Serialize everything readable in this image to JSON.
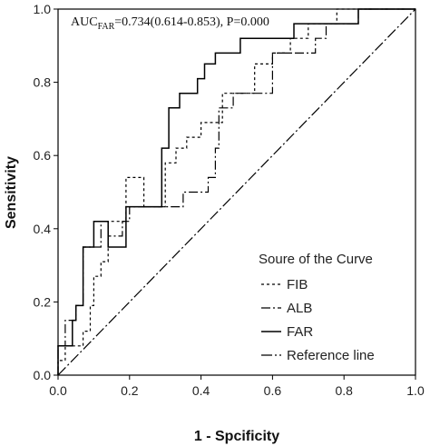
{
  "chart_data": {
    "type": "line",
    "xlabel": "1 - Spcificity",
    "ylabel": "Sensitivity",
    "xlim": [
      0,
      1
    ],
    "ylim": [
      0,
      1
    ],
    "xticks": [
      "0.0",
      "0.2",
      "0.4",
      "0.6",
      "0.8",
      "1.0"
    ],
    "yticks": [
      "0.0",
      "0.2",
      "0.4",
      "0.6",
      "0.8",
      "1.0"
    ],
    "grid": false,
    "legend_position": "bottom-right",
    "legend_title": "Soure of the Curve",
    "annotation": {
      "prefix": "AUC",
      "subscript": "FAR",
      "rest": "=0.734(0.614-0.853), P=0.000"
    },
    "series": [
      {
        "name": "FIB",
        "dash": "3,3",
        "points": [
          [
            0,
            0
          ],
          [
            0,
            0.04
          ],
          [
            0.02,
            0.04
          ],
          [
            0.02,
            0.08
          ],
          [
            0.07,
            0.08
          ],
          [
            0.07,
            0.12
          ],
          [
            0.09,
            0.12
          ],
          [
            0.09,
            0.19
          ],
          [
            0.1,
            0.19
          ],
          [
            0.1,
            0.27
          ],
          [
            0.12,
            0.27
          ],
          [
            0.12,
            0.31
          ],
          [
            0.14,
            0.31
          ],
          [
            0.14,
            0.42
          ],
          [
            0.19,
            0.42
          ],
          [
            0.19,
            0.54
          ],
          [
            0.24,
            0.54
          ],
          [
            0.24,
            0.46
          ],
          [
            0.3,
            0.46
          ],
          [
            0.3,
            0.58
          ],
          [
            0.33,
            0.58
          ],
          [
            0.33,
            0.62
          ],
          [
            0.36,
            0.62
          ],
          [
            0.36,
            0.65
          ],
          [
            0.4,
            0.65
          ],
          [
            0.4,
            0.69
          ],
          [
            0.46,
            0.69
          ],
          [
            0.46,
            0.77
          ],
          [
            0.55,
            0.77
          ],
          [
            0.55,
            0.85
          ],
          [
            0.6,
            0.85
          ],
          [
            0.6,
            0.88
          ],
          [
            0.65,
            0.88
          ],
          [
            0.65,
            0.92
          ],
          [
            0.7,
            0.92
          ],
          [
            0.7,
            0.96
          ],
          [
            0.78,
            0.96
          ],
          [
            0.78,
            1.0
          ],
          [
            1.0,
            1.0
          ]
        ]
      },
      {
        "name": "ALB",
        "dash": "10,3,2,3",
        "points": [
          [
            0,
            0
          ],
          [
            0,
            0.08
          ],
          [
            0.02,
            0.08
          ],
          [
            0.02,
            0.15
          ],
          [
            0.05,
            0.15
          ],
          [
            0.05,
            0.19
          ],
          [
            0.07,
            0.19
          ],
          [
            0.07,
            0.35
          ],
          [
            0.12,
            0.35
          ],
          [
            0.12,
            0.42
          ],
          [
            0.14,
            0.42
          ],
          [
            0.14,
            0.38
          ],
          [
            0.18,
            0.38
          ],
          [
            0.18,
            0.42
          ],
          [
            0.2,
            0.42
          ],
          [
            0.2,
            0.46
          ],
          [
            0.35,
            0.46
          ],
          [
            0.35,
            0.5
          ],
          [
            0.42,
            0.5
          ],
          [
            0.42,
            0.54
          ],
          [
            0.44,
            0.54
          ],
          [
            0.44,
            0.62
          ],
          [
            0.45,
            0.62
          ],
          [
            0.45,
            0.73
          ],
          [
            0.49,
            0.73
          ],
          [
            0.49,
            0.77
          ],
          [
            0.6,
            0.77
          ],
          [
            0.6,
            0.88
          ],
          [
            0.72,
            0.88
          ],
          [
            0.72,
            0.92
          ],
          [
            0.75,
            0.92
          ],
          [
            0.75,
            0.96
          ],
          [
            0.84,
            0.96
          ],
          [
            0.84,
            1.0
          ],
          [
            1.0,
            1.0
          ]
        ]
      },
      {
        "name": "FAR",
        "dash": "",
        "points": [
          [
            0,
            0
          ],
          [
            0,
            0.08
          ],
          [
            0.04,
            0.08
          ],
          [
            0.04,
            0.15
          ],
          [
            0.05,
            0.15
          ],
          [
            0.05,
            0.19
          ],
          [
            0.07,
            0.19
          ],
          [
            0.07,
            0.35
          ],
          [
            0.1,
            0.35
          ],
          [
            0.1,
            0.42
          ],
          [
            0.14,
            0.42
          ],
          [
            0.14,
            0.35
          ],
          [
            0.19,
            0.35
          ],
          [
            0.19,
            0.46
          ],
          [
            0.29,
            0.46
          ],
          [
            0.29,
            0.62
          ],
          [
            0.31,
            0.62
          ],
          [
            0.31,
            0.73
          ],
          [
            0.34,
            0.73
          ],
          [
            0.34,
            0.77
          ],
          [
            0.39,
            0.77
          ],
          [
            0.39,
            0.81
          ],
          [
            0.41,
            0.81
          ],
          [
            0.41,
            0.85
          ],
          [
            0.44,
            0.85
          ],
          [
            0.44,
            0.88
          ],
          [
            0.51,
            0.88
          ],
          [
            0.51,
            0.92
          ],
          [
            0.66,
            0.92
          ],
          [
            0.66,
            0.96
          ],
          [
            0.84,
            0.96
          ],
          [
            0.84,
            1.0
          ],
          [
            1.0,
            1.0
          ]
        ]
      },
      {
        "name": "Reference line",
        "dash": "12,3,2,3",
        "points": [
          [
            0,
            0
          ],
          [
            1,
            1
          ]
        ]
      }
    ]
  }
}
